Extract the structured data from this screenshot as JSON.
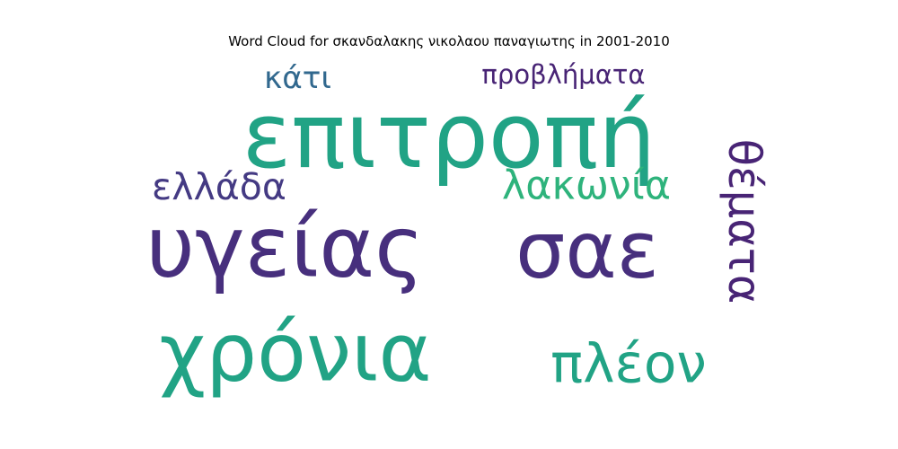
{
  "chart_data": {
    "type": "wordcloud",
    "title": "Word Cloud for σκανδαλακης νικολαου παναγιωτης in 2001-2010",
    "words": [
      {
        "text": "σαε",
        "color": "#472f7d"
      },
      {
        "text": "επιτροπή",
        "color": "#21a385"
      },
      {
        "text": "υγείας",
        "color": "#472f7d"
      },
      {
        "text": "χρόνια",
        "color": "#21a385"
      },
      {
        "text": "πλέον",
        "color": "#21a385"
      },
      {
        "text": "λακωνία",
        "color": "#2eb37c"
      },
      {
        "text": "ελλάδα",
        "color": "#443a83"
      },
      {
        "text": "κάτι",
        "color": "#31688e"
      },
      {
        "text": "προβλήματα",
        "color": "#482475"
      },
      {
        "text": "θέματα",
        "color": "#482475"
      }
    ]
  }
}
